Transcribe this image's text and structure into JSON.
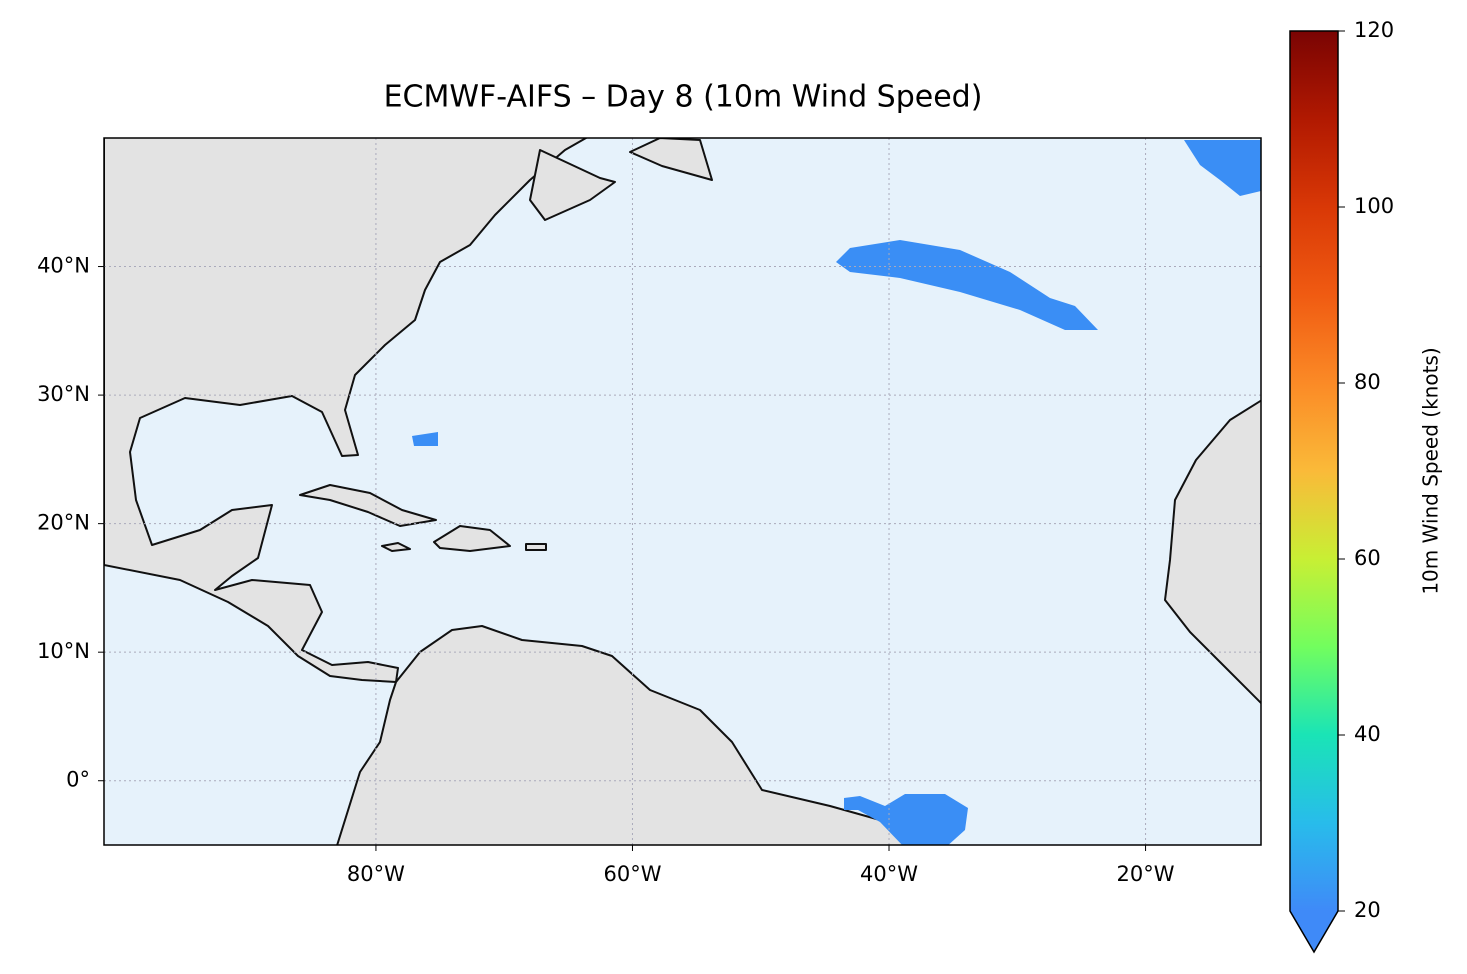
{
  "chart_data": {
    "type": "map",
    "title": "ECMWF-AIFS – Day 8 (10m Wind Speed)",
    "xlim": [
      -101.2,
      -11
    ],
    "ylim": [
      -5,
      50
    ],
    "xticks": [
      {
        "value": -80,
        "label": "80°W"
      },
      {
        "value": -60,
        "label": "60°W"
      },
      {
        "value": -40,
        "label": "40°W"
      },
      {
        "value": -20,
        "label": "20°W"
      }
    ],
    "yticks": [
      {
        "value": 0,
        "label": "0°"
      },
      {
        "value": 10,
        "label": "10°N"
      },
      {
        "value": 20,
        "label": "20°N"
      },
      {
        "value": 30,
        "label": "30°N"
      },
      {
        "value": 40,
        "label": "40°N"
      }
    ],
    "grid": true,
    "colorbar": {
      "label": "10m Wind Speed (knots)",
      "lim": [
        20,
        120
      ],
      "ticks": [
        20,
        40,
        60,
        80,
        100,
        120
      ],
      "extend": "min",
      "colors": [
        "#3f8af8",
        "#28bceb",
        "#1ae4b6",
        "#72fe5e",
        "#c8ef34",
        "#faba39",
        "#fb8a26",
        "#f05b12",
        "#d93806",
        "#b11901",
        "#7a0403"
      ]
    }
  }
}
